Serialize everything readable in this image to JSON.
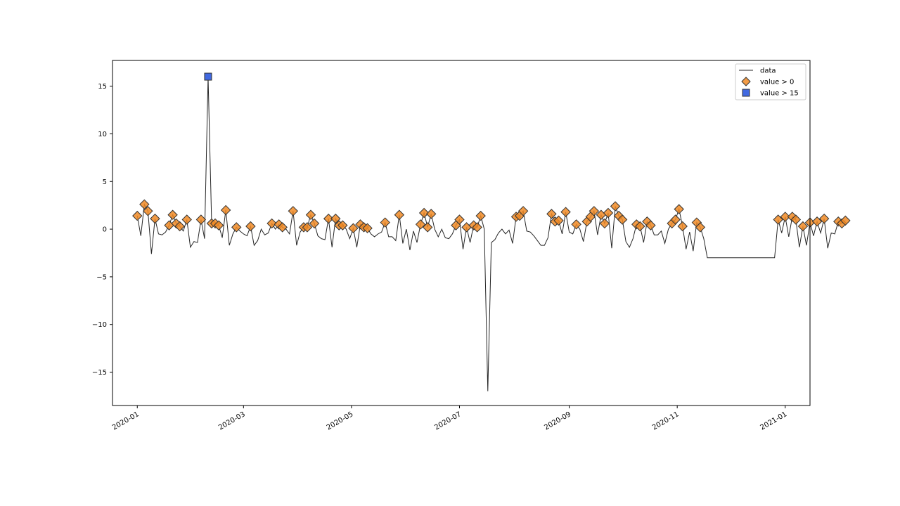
{
  "colors": {
    "line": "#262626",
    "gt0_fill": "#f08a24",
    "gt15_fill": "#4169e1",
    "edge": "#333333"
  },
  "chart_data": {
    "type": "line",
    "title": "",
    "xlabel": "",
    "ylabel": "",
    "x_start": "2020-01-01",
    "x_end": "2020-12-31",
    "x_interval_days": 2,
    "ylim": [
      -18.5,
      17.7
    ],
    "x_ticks": [
      "2020-01",
      "2020-03",
      "2020-05",
      "2020-07",
      "2020-09",
      "2020-11",
      "2021-01"
    ],
    "y_ticks": [
      15,
      10,
      5,
      0,
      -5,
      -10,
      -15
    ],
    "y_tick_labels": [
      "15",
      "10",
      "5",
      "0",
      "−5",
      "−10",
      "−15"
    ],
    "legend": {
      "position": "top-right",
      "entries": [
        "data",
        "value > 0",
        "value > 15"
      ]
    },
    "series": [
      {
        "name": "data",
        "style": "line",
        "values": [
          1.4,
          -0.7,
          2.6,
          1.9,
          -2.6,
          1.1,
          -0.5,
          -0.6,
          -0.3,
          0.4,
          1.5,
          0.6,
          0.3,
          -0.2,
          1.0,
          -1.9,
          -1.3,
          -1.4,
          1.0,
          -1.0,
          16.0,
          0.6,
          0.6,
          0.4,
          -0.9,
          2.0,
          -1.7,
          -0.5,
          0.2,
          -0.2,
          -0.5,
          -0.7,
          0.3,
          -1.7,
          -1.2,
          0.0,
          -0.6,
          -0.4,
          0.6,
          0.0,
          0.5,
          0.2,
          0.0,
          -0.5,
          1.9,
          -1.7,
          -0.3,
          0.2,
          0.2,
          1.5,
          0.6,
          -0.7,
          -1.0,
          -1.1,
          1.1,
          -1.9,
          1.1,
          0.4,
          0.4,
          0.0,
          -1.0,
          0.1,
          -1.9,
          0.5,
          0.2,
          0.1,
          -0.5,
          -0.8,
          -0.5,
          -0.3,
          0.7,
          -0.8,
          -0.8,
          -1.2,
          1.5,
          -1.5,
          0.0,
          -2.2,
          -0.2,
          -1.4,
          0.5,
          1.7,
          0.2,
          1.6,
          0.0,
          -0.8,
          0.0,
          -0.9,
          -1.0,
          -0.5,
          0.4,
          1.0,
          -2.1,
          0.2,
          -1.4,
          0.4,
          0.2,
          1.4,
          0.0,
          -17.0,
          -1.4,
          -1.1,
          -0.4,
          0.0,
          -0.5,
          -0.1,
          -1.5,
          1.3,
          1.4,
          1.9,
          -0.2,
          -0.3,
          -0.7,
          -1.2,
          -1.7,
          -1.7,
          -0.9,
          1.6,
          0.8,
          0.9,
          -0.5,
          1.8,
          -0.3,
          -0.5,
          0.5,
          0.0,
          -1.3,
          0.8,
          1.3,
          1.9,
          -0.6,
          1.5,
          0.6,
          1.7,
          -2.0,
          2.4,
          1.4,
          1.0,
          -1.3,
          -1.9,
          -1.0,
          0.5,
          0.3,
          -1.4,
          0.8,
          0.4,
          -0.6,
          -0.6,
          -0.2,
          -1.5,
          0.0,
          0.6,
          1.0,
          2.1,
          0.3,
          -2.1,
          -0.3,
          -2.3,
          0.7,
          0.2,
          -1.0,
          -3.0,
          -3.0,
          -3.0,
          -3.0,
          -3.0,
          -3.0,
          -3.0,
          -3.0,
          -3.0,
          -3.0,
          -3.0,
          -3.0,
          -3.0,
          -3.0,
          -3.0,
          -3.0,
          -3.0,
          -3.0,
          -3.0,
          -3.0,
          1.0,
          -0.4,
          1.3,
          -0.8,
          1.3,
          1.0,
          -1.9,
          0.3,
          -1.7,
          0.7,
          -0.7,
          0.8,
          -0.4,
          1.1,
          -2.0,
          -0.4,
          -0.5,
          0.8,
          0.6,
          0.9
        ]
      },
      {
        "name": "value > 0",
        "style": "marker",
        "marker": "diamond",
        "rule": "points where value > 0"
      },
      {
        "name": "value > 15",
        "style": "marker",
        "marker": "square",
        "rule": "points where value > 15"
      }
    ]
  }
}
